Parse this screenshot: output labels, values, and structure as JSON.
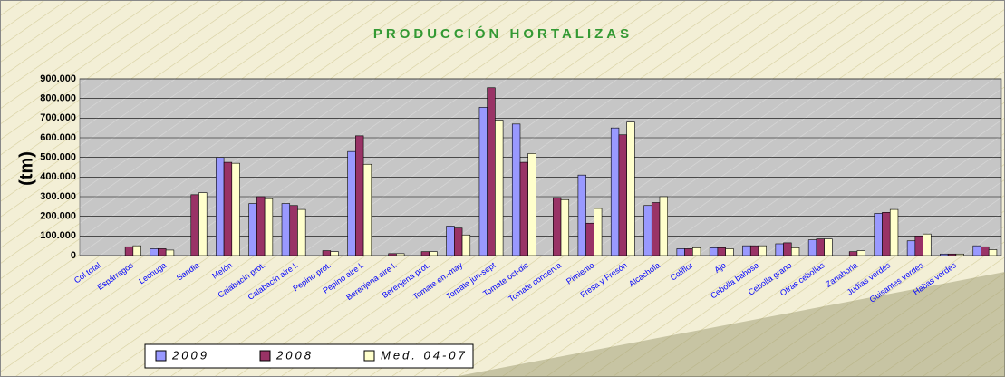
{
  "chart_data": {
    "type": "bar",
    "title": "PRODUCCIÓN HORTALIZAS",
    "y_label": "(tm)",
    "categories": [
      "Col total",
      "Espárragos",
      "Lechuga",
      "Sandia",
      "Melón",
      "Calabacín prot.",
      "Calabacín aire l.",
      "Pepino prot.",
      "Pepino aire l.",
      "Berenjena aire l.",
      "Berenjena prot.",
      "Tomate en.-may",
      "Tomate jun-sept",
      "Tomate oct-dic",
      "Tomate conserva",
      "Pimiento",
      "Fresa y Fresón",
      "Alcachofa",
      "Coliflor",
      "Ajo",
      "Cebolla babosa",
      "Cebolla grano",
      "Otras cebollas",
      "Zanahoria",
      "Judías verdes",
      "Guisantes verdes",
      "Habas verdes",
      null
    ],
    "series": [
      {
        "name": "2009",
        "color": "#9999ff",
        "values": [
          null,
          0,
          35000,
          0,
          500000,
          265000,
          265000,
          0,
          530000,
          0,
          0,
          150000,
          755000,
          670000,
          0,
          410000,
          650000,
          255000,
          35000,
          40000,
          50000,
          60000,
          80000,
          0,
          215000,
          75000,
          8000,
          50000
        ]
      },
      {
        "name": "2008",
        "color": "#993366",
        "values": [
          null,
          45000,
          35000,
          310000,
          475000,
          300000,
          255000,
          25000,
          610000,
          10000,
          20000,
          140000,
          855000,
          475000,
          295000,
          165000,
          615000,
          270000,
          35000,
          40000,
          50000,
          65000,
          85000,
          20000,
          220000,
          100000,
          8000,
          45000
        ]
      },
      {
        "name": "Med. 04-07",
        "color": "#ffffcc",
        "values": [
          null,
          50000,
          28000,
          320000,
          470000,
          290000,
          235000,
          20000,
          465000,
          10000,
          20000,
          105000,
          690000,
          520000,
          285000,
          240000,
          680000,
          300000,
          40000,
          35000,
          50000,
          40000,
          85000,
          25000,
          235000,
          110000,
          8000,
          30000
        ]
      }
    ],
    "ylim": [
      0,
      900000
    ],
    "yticks": [
      0,
      {
        "value": 100000,
        "label": "100.000"
      },
      {
        "value": 200000,
        "label": "200.000"
      },
      {
        "value": 300000,
        "label": "300.000"
      },
      {
        "value": 400000,
        "label": "400.000"
      },
      {
        "value": 500000,
        "label": "500.000"
      },
      {
        "value": 600000,
        "label": "600.000"
      },
      {
        "value": 700000,
        "label": "700.000"
      },
      {
        "value": 800000,
        "label": "800.000"
      },
      {
        "value": 900000,
        "label": "900.000"
      }
    ],
    "grid": true
  }
}
